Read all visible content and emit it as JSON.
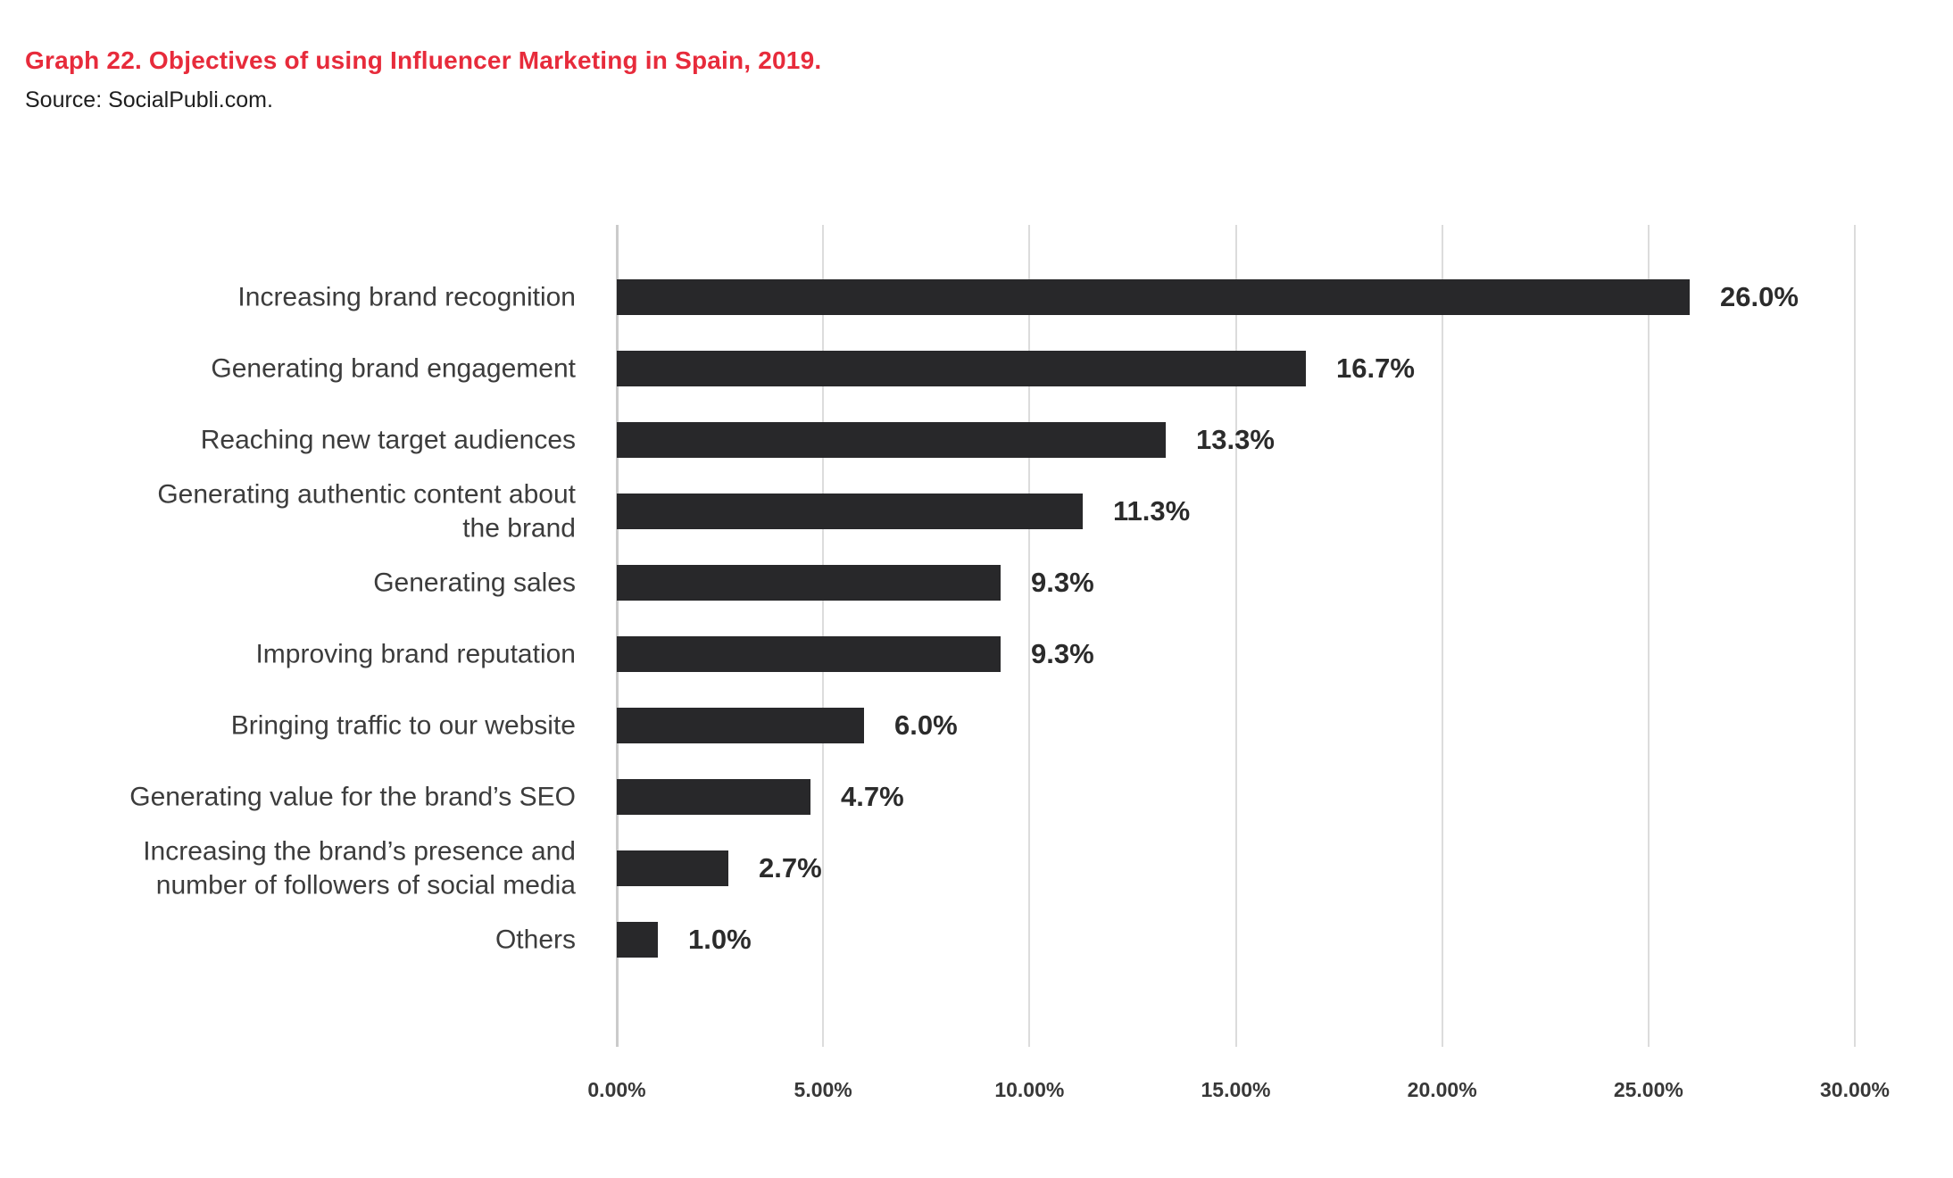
{
  "header": {
    "title": "Graph 22. Objectives of using Influencer Marketing in Spain, 2019.",
    "source": "Source: SocialPubli.com."
  },
  "colors": {
    "title_red": "#e72b3b",
    "bar": "#28282a",
    "axis_line": "#cbcbcb",
    "gridline": "#dcdcdc",
    "category_text": "#3c3c3c",
    "value_text": "#2b2b2b",
    "tick_text": "#383838"
  },
  "chart_data": {
    "type": "bar",
    "orientation": "horizontal",
    "title": "Graph 22. Objectives of using Influencer Marketing in Spain, 2019.",
    "categories": [
      "Increasing brand recognition",
      "Generating brand engagement",
      "Reaching new target audiences",
      "Generating authentic content about\nthe brand",
      "Generating sales",
      "Improving brand reputation",
      "Bringing traffic to our website",
      "Generating value for the brand’s SEO",
      "Increasing the brand’s presence and\nnumber of followers of social media",
      "Others"
    ],
    "values": [
      26.0,
      16.7,
      13.3,
      11.3,
      9.3,
      9.3,
      6.0,
      4.7,
      2.7,
      1.0
    ],
    "value_labels": [
      "26.0%",
      "16.7%",
      "13.3%",
      "11.3%",
      "9.3%",
      "9.3%",
      "6.0%",
      "4.7%",
      "2.7%",
      "1.0%"
    ],
    "x_ticks": [
      "0.00%",
      "5.00%",
      "10.00%",
      "15.00%",
      "20.00%",
      "25.00%",
      "30.00%"
    ],
    "xlabel": "",
    "ylabel": "",
    "xlim": [
      0,
      30
    ],
    "grid": true,
    "legend": "none"
  }
}
